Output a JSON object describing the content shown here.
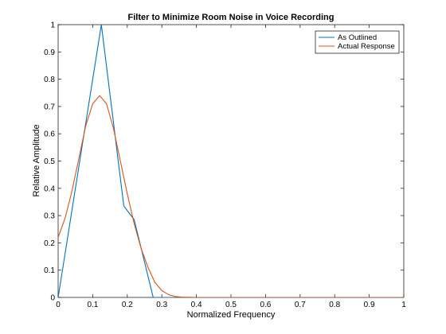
{
  "chart_data": {
    "type": "line",
    "title": "Filter to Minimize Room Noise in Voice Recording",
    "xlabel": "Normalized Frequency",
    "ylabel": "Relative Amplitude",
    "xlim": [
      0,
      1
    ],
    "ylim": [
      0,
      1
    ],
    "xticks": [
      0,
      0.1,
      0.2,
      0.3,
      0.4,
      0.5,
      0.6,
      0.7,
      0.8,
      0.9,
      1
    ],
    "yticks": [
      0,
      0.1,
      0.2,
      0.3,
      0.4,
      0.5,
      0.6,
      0.7,
      0.8,
      0.9,
      1
    ],
    "xtick_labels": [
      "0",
      "0.1",
      "0.2",
      "0.3",
      "0.4",
      "0.5",
      "0.6",
      "0.7",
      "0.8",
      "0.9",
      "1"
    ],
    "ytick_labels": [
      "0",
      "0.1",
      "0.2",
      "0.3",
      "0.4",
      "0.5",
      "0.6",
      "0.7",
      "0.8",
      "0.9",
      "1"
    ],
    "grid": false,
    "legend_position": "top-right",
    "series": [
      {
        "name": "As Outlined",
        "color": "#0072BD",
        "x": [
          0,
          0.125,
          0.19,
          0.22,
          0.275,
          0.28,
          1
        ],
        "y": [
          0,
          1,
          0.335,
          0.285,
          0,
          0,
          0
        ]
      },
      {
        "name": "Actual Response",
        "color": "#D95319",
        "x": [
          0,
          0.02,
          0.04,
          0.06,
          0.08,
          0.1,
          0.12,
          0.14,
          0.16,
          0.18,
          0.2,
          0.22,
          0.24,
          0.26,
          0.28,
          0.3,
          0.32,
          0.34,
          0.36,
          0.4,
          0.5,
          0.6,
          0.7,
          0.8,
          0.9,
          1
        ],
        "y": [
          0.22,
          0.29,
          0.39,
          0.51,
          0.63,
          0.71,
          0.74,
          0.71,
          0.62,
          0.5,
          0.38,
          0.27,
          0.18,
          0.11,
          0.055,
          0.025,
          0.01,
          0.003,
          0.001,
          0,
          0,
          0,
          0,
          0,
          0,
          0
        ]
      }
    ]
  }
}
